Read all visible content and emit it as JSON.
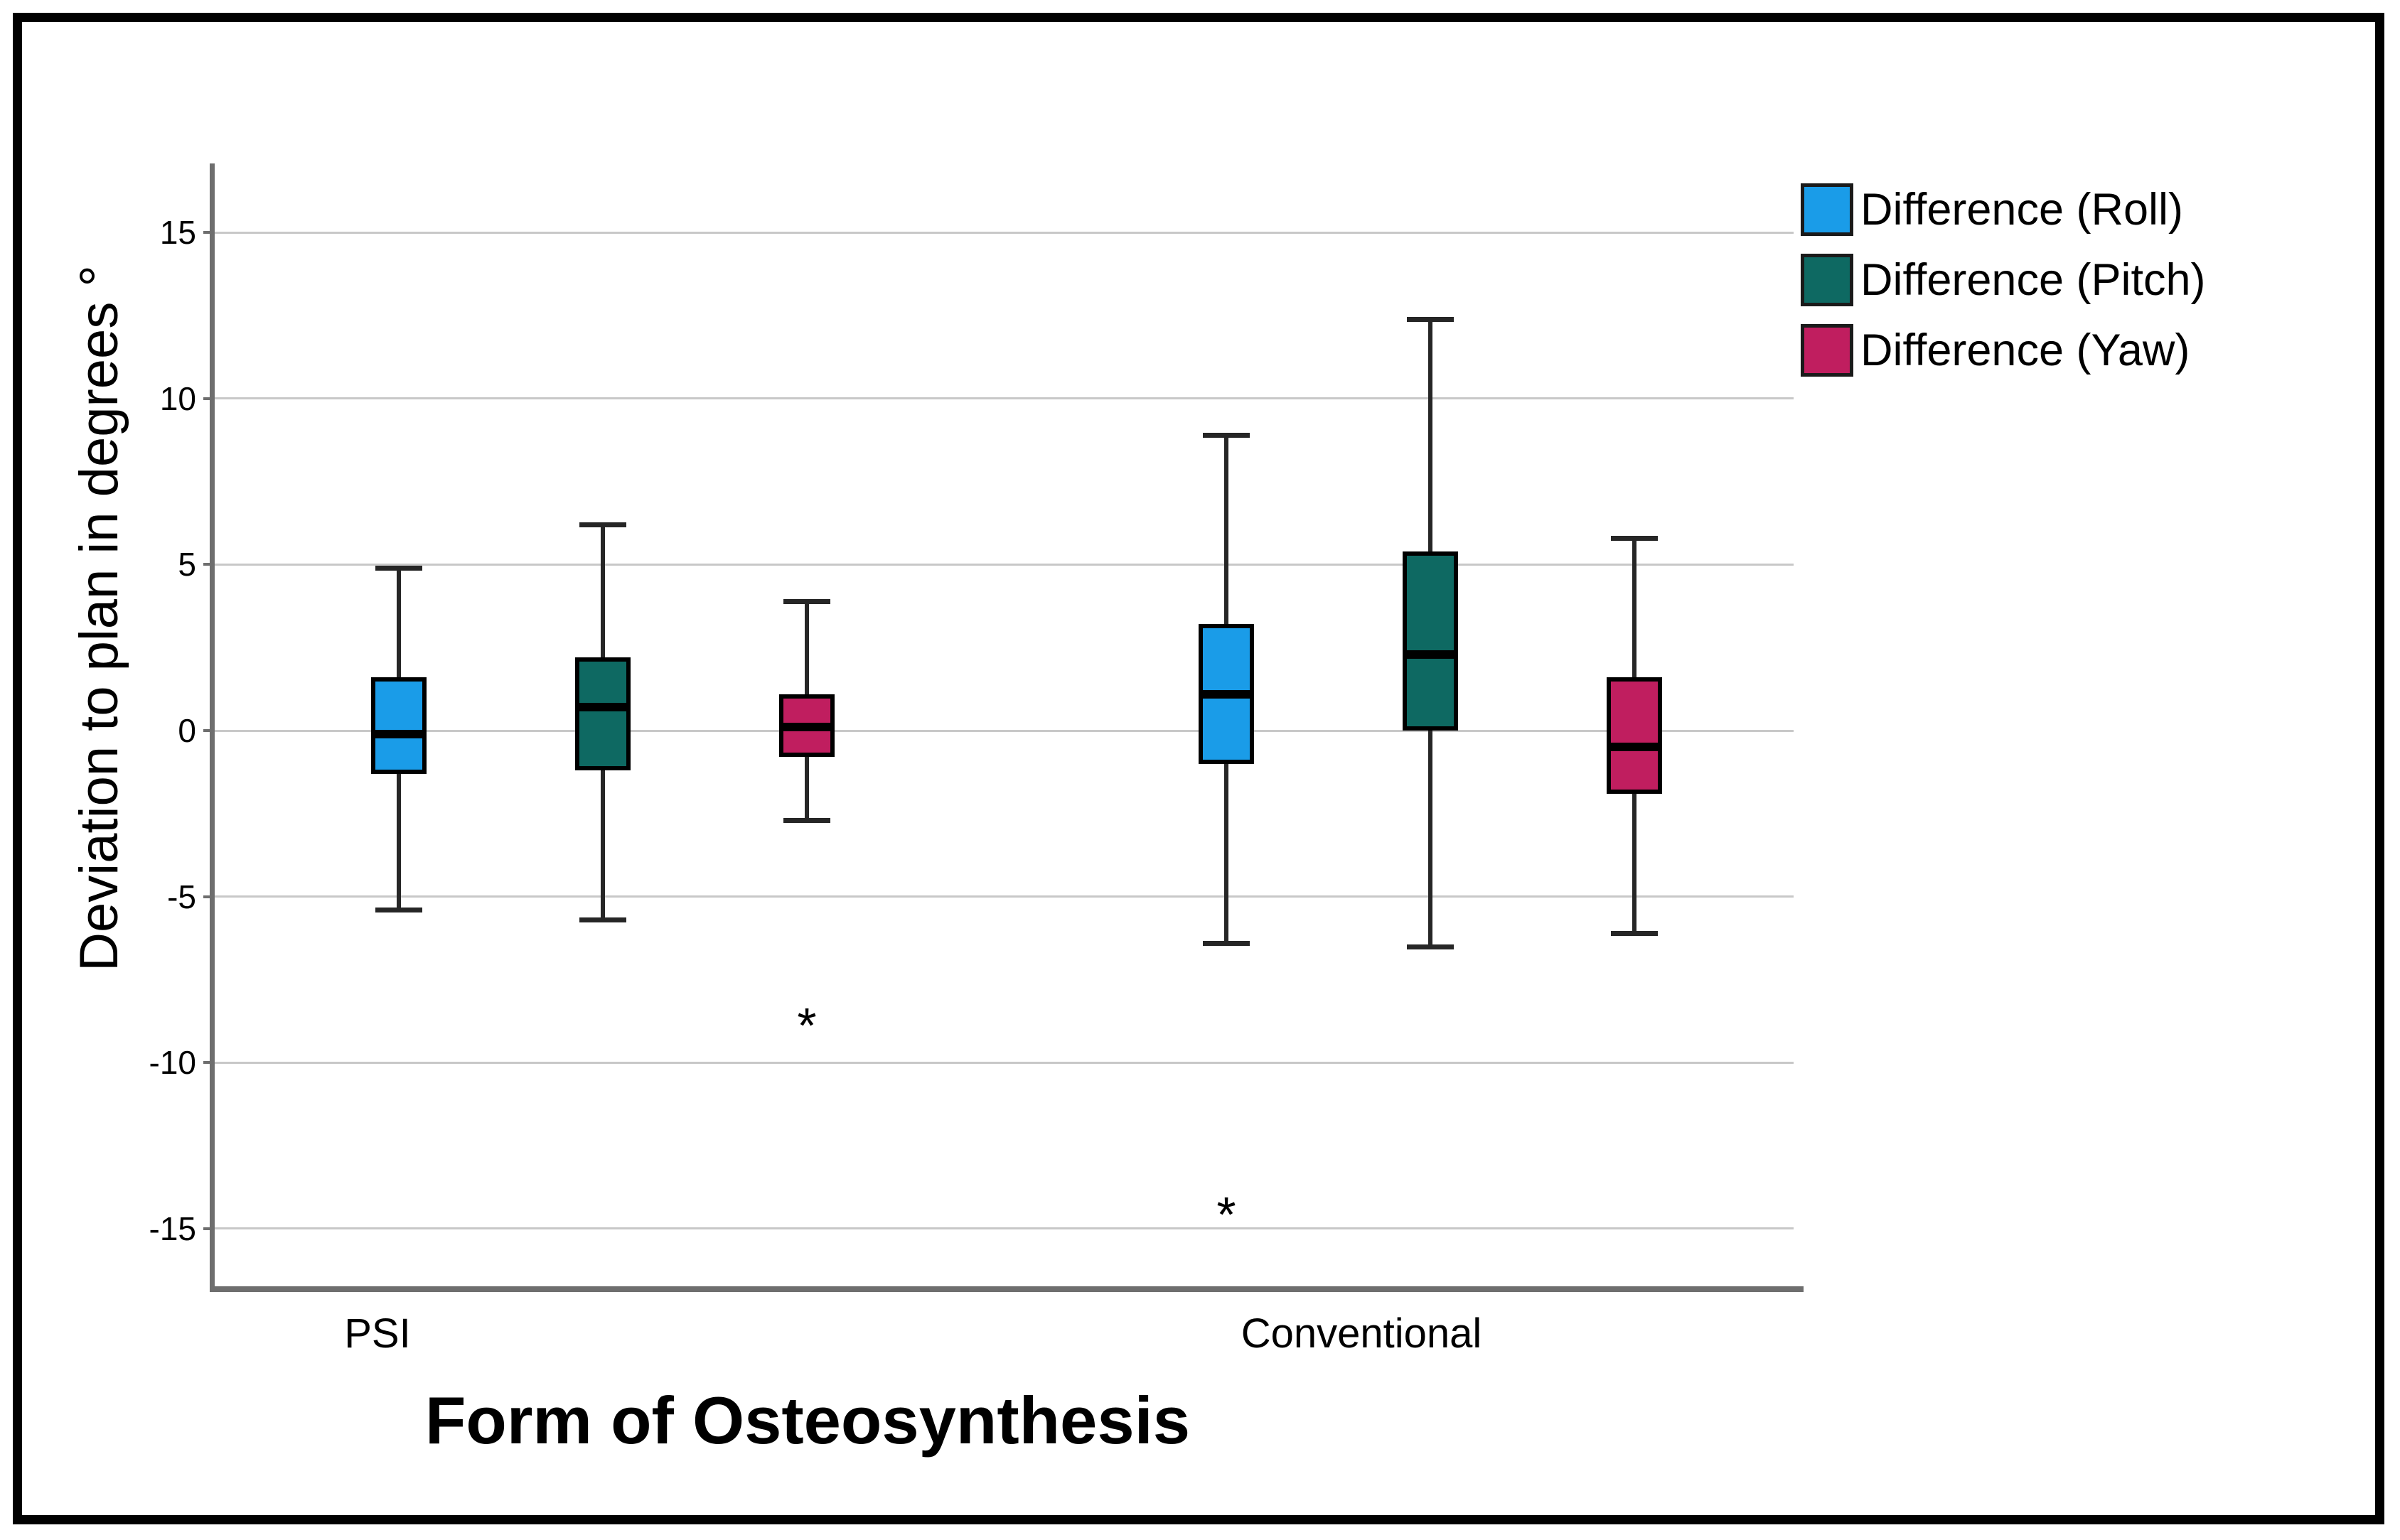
{
  "chart_data": {
    "type": "boxplot",
    "title": "",
    "xlabel": "Form of Osteosynthesis",
    "ylabel": "Deviation to plan in degrees °",
    "categories": [
      {
        "label": "PSI",
        "label_x": 531
      },
      {
        "label": "Conventional",
        "label_x": 1915
      }
    ],
    "yticks": [
      15,
      10,
      5,
      0,
      -5,
      -10,
      -15
    ],
    "ylim": [
      -16.7,
      17.1
    ],
    "grid": "horizontal",
    "legend_position": "top-right",
    "outlier_marker": "*",
    "series": [
      {
        "name": "Difference (Roll)",
        "color": "#1a9ce8",
        "boxes": [
          {
            "category": "PSI",
            "whisker_low": -5.4,
            "q1": -1.3,
            "median": -0.1,
            "q3": 1.6,
            "whisker_high": 4.9,
            "outliers": []
          },
          {
            "category": "Conventional",
            "whisker_low": -6.4,
            "q1": -1.0,
            "median": 1.1,
            "q3": 3.2,
            "whisker_high": 8.9,
            "outliers": [
              -14.3
            ]
          }
        ]
      },
      {
        "name": "Difference (Pitch)",
        "color": "#0e6962",
        "boxes": [
          {
            "category": "PSI",
            "whisker_low": -5.7,
            "q1": -1.2,
            "median": 0.7,
            "q3": 2.2,
            "whisker_high": 6.2,
            "outliers": []
          },
          {
            "category": "Conventional",
            "whisker_low": -6.5,
            "q1": 0.0,
            "median": 2.3,
            "q3": 5.4,
            "whisker_high": 12.4,
            "outliers": []
          }
        ]
      },
      {
        "name": "Difference (Yaw)",
        "color": "#c01e5f",
        "boxes": [
          {
            "category": "PSI",
            "whisker_low": -2.7,
            "q1": -0.8,
            "median": 0.1,
            "q3": 1.1,
            "whisker_high": 3.9,
            "outliers": [
              -8.6
            ]
          },
          {
            "category": "Conventional",
            "whisker_low": -6.1,
            "q1": -1.9,
            "median": -0.5,
            "q3": 1.6,
            "whisker_high": 5.8,
            "outliers": []
          }
        ]
      }
    ]
  }
}
